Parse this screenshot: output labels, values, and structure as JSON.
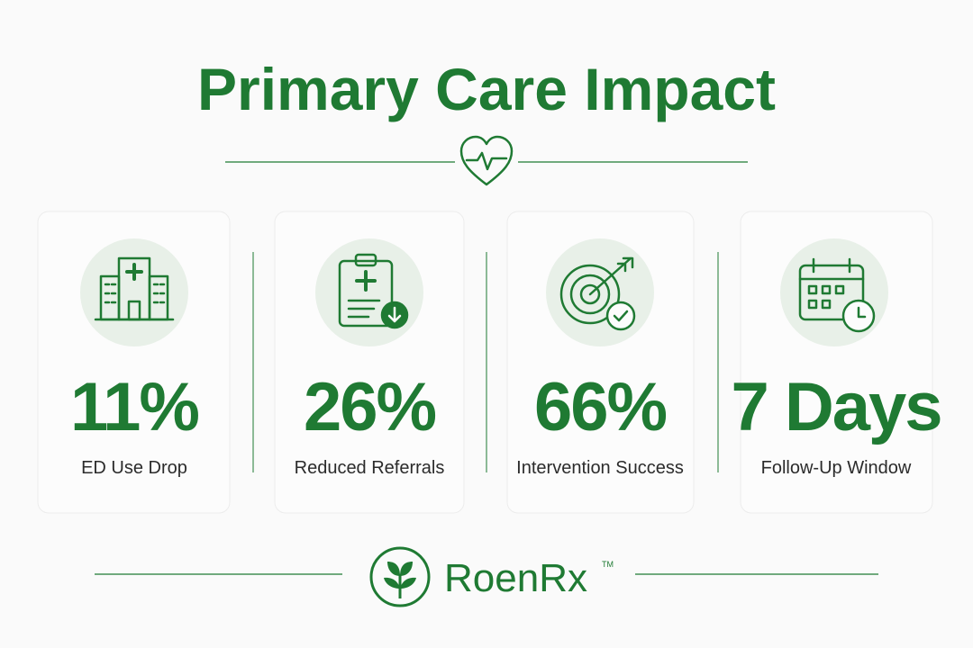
{
  "header": {
    "title": "Primary Care Impact"
  },
  "stats": [
    {
      "value": "11%",
      "label": "ED Use Drop"
    },
    {
      "value": "26%",
      "label": "Reduced Referrals"
    },
    {
      "value": "66%",
      "label": "Intervention Success"
    },
    {
      "value": "7 Days",
      "label": "Follow-Up Window"
    }
  ],
  "footer": {
    "brand": "RoenRx",
    "trademark": "TM"
  }
}
